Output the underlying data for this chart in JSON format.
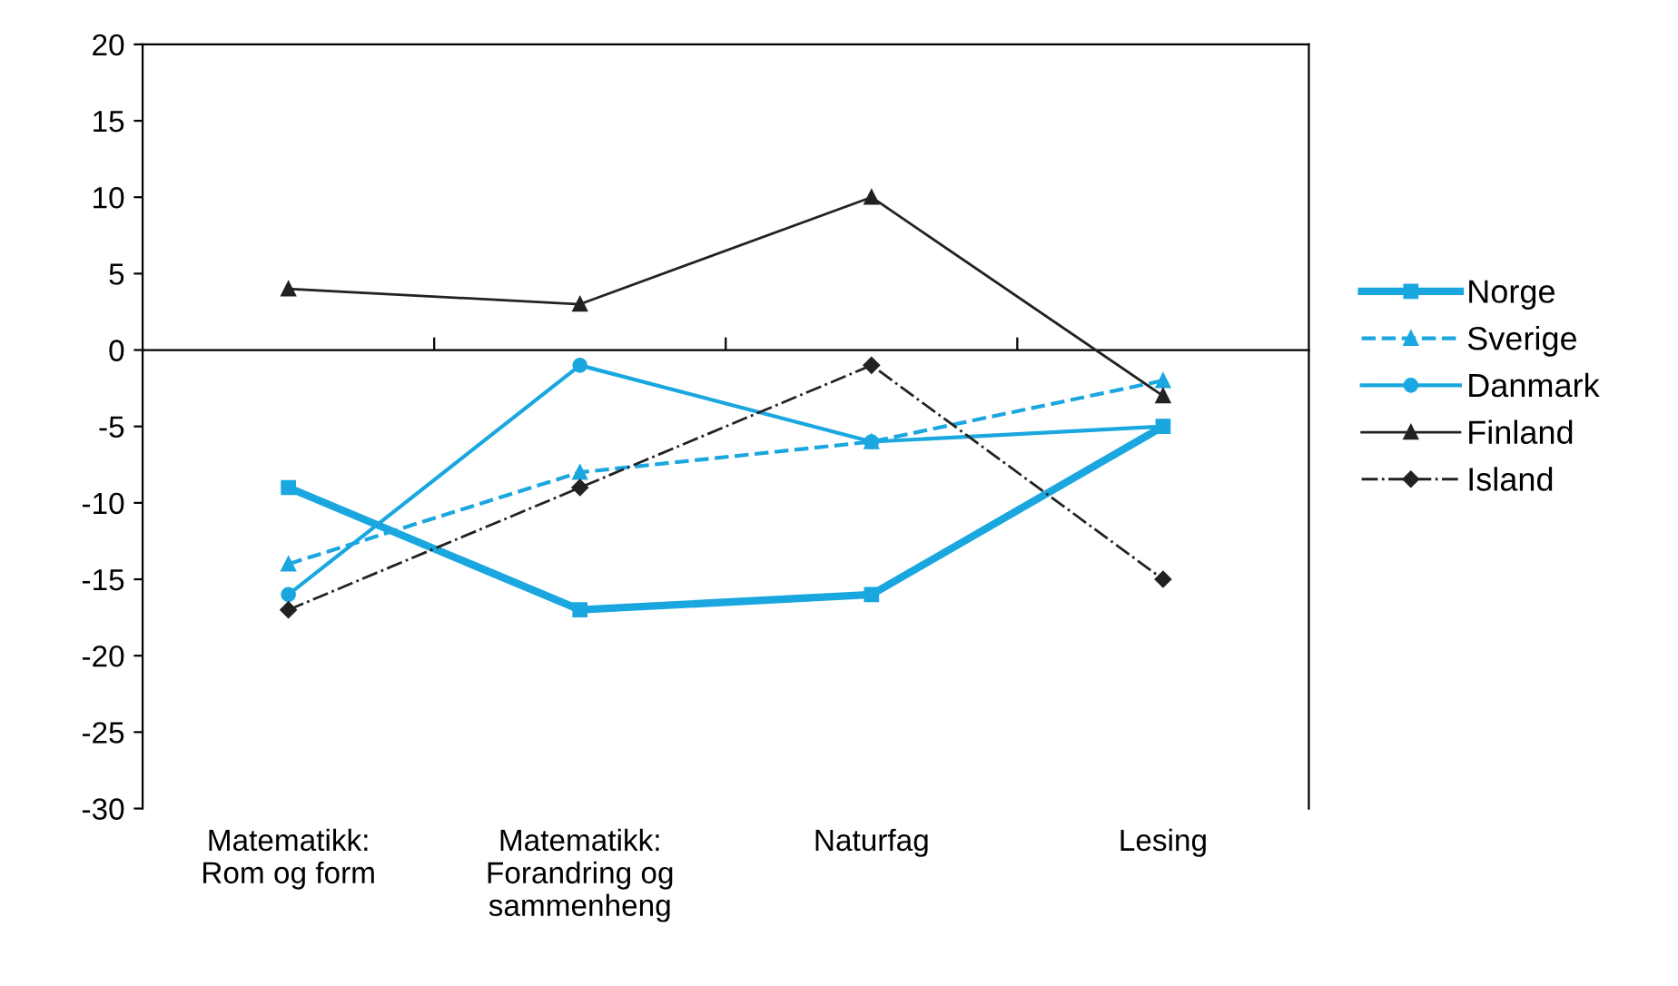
{
  "chart_data": {
    "type": "line",
    "categories": [
      "Matematikk:\nRom og form",
      "Matematikk:\nForandring og\nsammenheng",
      "Naturfag",
      "Lesing"
    ],
    "ylim": [
      -30,
      20
    ],
    "yticks": [
      -30,
      -25,
      -20,
      -15,
      -10,
      -5,
      0,
      5,
      10,
      15,
      20
    ],
    "legend": "right",
    "series": [
      {
        "name": "Norge",
        "color": "#1aa7df",
        "values": [
          -9,
          -17,
          -16,
          -5
        ],
        "marker": "square",
        "line_style": "solid"
      },
      {
        "name": "Sverige",
        "color": "#1aa7df",
        "values": [
          -14,
          -8,
          -6,
          -2
        ],
        "marker": "triangle",
        "line_style": "dashed"
      },
      {
        "name": "Danmark",
        "color": "#1aa7df",
        "values": [
          -16,
          -1,
          -6,
          -5
        ],
        "marker": "circle",
        "line_style": "solid"
      },
      {
        "name": "Finland",
        "color": "#222222",
        "values": [
          4,
          3,
          10,
          -3
        ],
        "marker": "triangle",
        "line_style": "solid"
      },
      {
        "name": "Island",
        "color": "#222222",
        "values": [
          -17,
          -9,
          -1,
          -15
        ],
        "marker": "diamond",
        "line_style": "dashdot"
      }
    ]
  }
}
